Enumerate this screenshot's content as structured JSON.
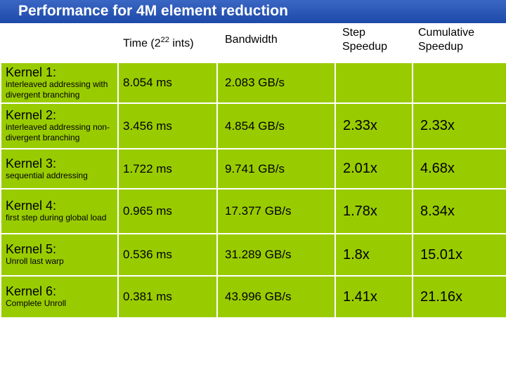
{
  "title": "Performance for 4M element reduction",
  "columns": {
    "time": "Time (2",
    "time_exp": "22",
    "time_suffix": " ints)",
    "bandwidth": "Bandwidth",
    "step": "Step Speedup",
    "cumulative": "Cumulative Speedup"
  },
  "rows": [
    {
      "name": "Kernel 1:",
      "desc": "interleaved addressing with divergent branching",
      "time": "8.054 ms",
      "bandwidth": "2.083 GB/s",
      "step": "",
      "cumulative": ""
    },
    {
      "name": "Kernel 2:",
      "desc": "interleaved addressing non-divergent branching",
      "time": "3.456 ms",
      "bandwidth": "4.854 GB/s",
      "step": "2.33x",
      "cumulative": "2.33x"
    },
    {
      "name": "Kernel 3:",
      "desc": "sequential addressing",
      "time": "1.722 ms",
      "bandwidth": "9.741 GB/s",
      "step": "2.01x",
      "cumulative": "4.68x"
    },
    {
      "name": "Kernel 4:",
      "desc": "first step during global load",
      "time": "0.965 ms",
      "bandwidth": "17.377 GB/s",
      "step": "1.78x",
      "cumulative": "8.34x"
    },
    {
      "name": "Kernel 5:",
      "desc": "Unroll last warp",
      "time": "0.536 ms",
      "bandwidth": "31.289 GB/s",
      "step": "1.8x",
      "cumulative": "15.01x"
    },
    {
      "name": "Kernel 6:",
      "desc": "Complete Unroll",
      "time": "0.381 ms",
      "bandwidth": "43.996 GB/s",
      "step": "1.41x",
      "cumulative": "21.16x"
    }
  ],
  "colors": {
    "header_bar": "#1d4aa8",
    "cell": "#99cc00",
    "title_text": "#ffffff"
  }
}
